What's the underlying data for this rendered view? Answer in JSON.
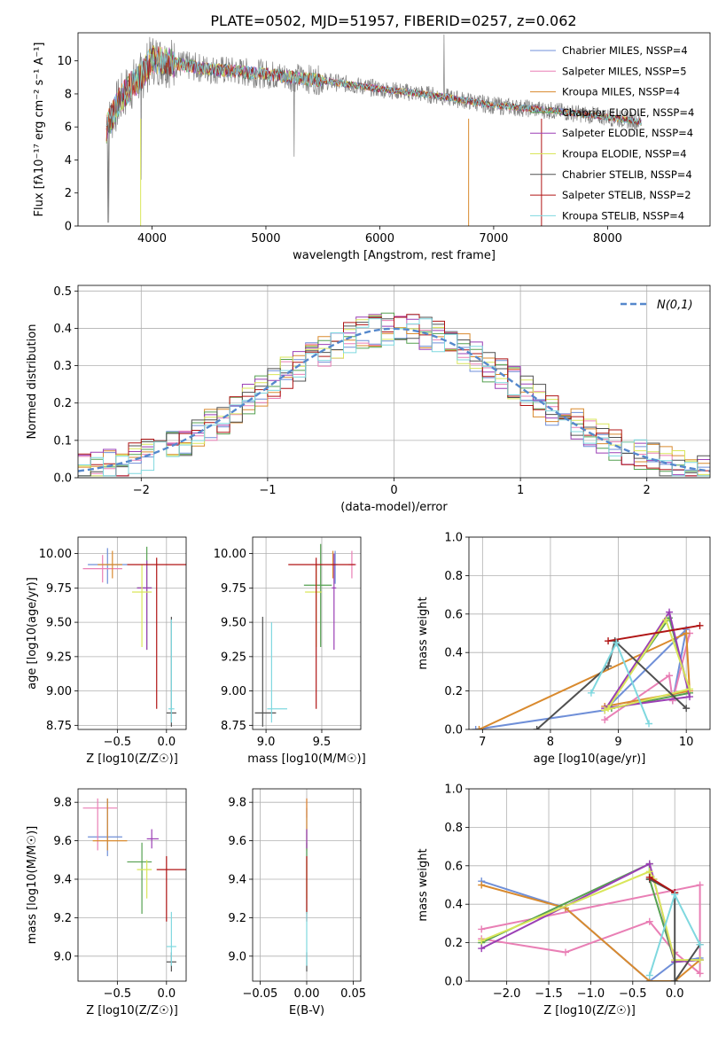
{
  "title": "PLATE=0502, MJD=51957, FIBERID=0257, z=0.062",
  "colors": [
    "#6f8fd8",
    "#e97fb5",
    "#d98a2e",
    "#55a050",
    "#9b3fb5",
    "#d9e65a",
    "#505050",
    "#b01515",
    "#7fd8df"
  ],
  "chart_data": [
    {
      "id": "spectrum",
      "type": "line",
      "xlabel": "wavelength [Angstrom, rest frame]",
      "ylabel": "Flux [fλ10⁻¹⁷ erg cm⁻² s⁻¹ A⁻¹]",
      "xlim": [
        3350,
        8900
      ],
      "ylim": [
        0,
        11.7
      ],
      "xticks": [
        4000,
        5000,
        6000,
        7000,
        8000
      ],
      "yticks": [
        0,
        2,
        4,
        6,
        8,
        10
      ],
      "grid": false,
      "legend_position": "top-right",
      "legend": [
        "Chabrier MILES, NSSP=4",
        "Salpeter MILES, NSSP=5",
        "Kroupa MILES, NSSP=4",
        "Chabrier ELODIE, NSSP=4",
        "Salpeter ELODIE, NSSP=4",
        "Kroupa ELODIE, NSSP=4",
        "Chabrier STELIB, NSSP=4",
        "Salpeter STELIB, NSSP=2",
        "Kroupa STELIB, NSSP=4"
      ],
      "continuum": {
        "x": [
          3600,
          3700,
          3800,
          3900,
          4000,
          4100,
          4300,
          4500,
          5000,
          5500,
          6000,
          6500,
          7000,
          7500,
          8000,
          8300
        ],
        "y": [
          5.9,
          7.4,
          8.4,
          9.0,
          10.1,
          10.0,
          9.7,
          9.5,
          9.2,
          8.8,
          8.3,
          7.9,
          7.3,
          7.0,
          6.6,
          6.3
        ]
      }
    },
    {
      "id": "residuals",
      "type": "step",
      "xlabel": "(data-model)/error",
      "ylabel": "Normed distribution",
      "xlim": [
        -2.5,
        2.5
      ],
      "ylim": [
        0,
        0.515
      ],
      "xticks": [
        -2,
        -1,
        0,
        1,
        2
      ],
      "yticks": [
        0.0,
        0.1,
        0.2,
        0.3,
        0.4,
        0.5
      ],
      "grid": true,
      "legend_position": "top-right",
      "legend": [
        "N(0,1)"
      ],
      "gaussian": {
        "mean": 0,
        "sigma": 1
      }
    },
    {
      "id": "age-vs-Z",
      "type": "errorbar",
      "xlabel": "Z [log10(Z/Z☉)]",
      "ylabel": "age  [log10(age/yr)]",
      "xlim": [
        -0.9,
        0.2
      ],
      "ylim": [
        8.72,
        10.12
      ],
      "xticks": [
        -0.5,
        0.0
      ],
      "yticks": [
        8.75,
        9.0,
        9.25,
        9.5,
        9.75,
        10.0
      ],
      "grid": true,
      "points": [
        {
          "s": 0,
          "x": -0.6,
          "xe": [
            0.2,
            0.2
          ],
          "y": 9.92,
          "ye": [
            0.14,
            0.12
          ]
        },
        {
          "s": 1,
          "x": -0.65,
          "xe": [
            0.2,
            0.2
          ],
          "y": 9.89,
          "ye": [
            0.1,
            0.1
          ]
        },
        {
          "s": 2,
          "x": -0.55,
          "xe": [
            0.15,
            0.1
          ],
          "y": 9.92,
          "ye": [
            0.1,
            0.1
          ]
        },
        {
          "s": 3,
          "x": -0.2,
          "xe": [
            0.1,
            0.05
          ],
          "y": 9.75,
          "ye": [
            0.45,
            0.3
          ]
        },
        {
          "s": 4,
          "x": -0.2,
          "xe": [
            0.1,
            0.05
          ],
          "y": 9.75,
          "ye": [
            0.45,
            0.2
          ]
        },
        {
          "s": 5,
          "x": -0.25,
          "xe": [
            0.1,
            0.1
          ],
          "y": 9.72,
          "ye": [
            0.4,
            0.2
          ]
        },
        {
          "s": 6,
          "x": 0.05,
          "xe": [
            0.05,
            0.05
          ],
          "y": 8.84,
          "ye": [
            0.1,
            0.7
          ]
        },
        {
          "s": 7,
          "x": -0.1,
          "xe": [
            0.3,
            0.3
          ],
          "y": 9.92,
          "ye": [
            1.05,
            0.05
          ]
        },
        {
          "s": 8,
          "x": 0.05,
          "xe": [
            0.03,
            0.03
          ],
          "y": 8.87,
          "ye": [
            0.1,
            0.65
          ]
        }
      ]
    },
    {
      "id": "age-vs-mass",
      "type": "errorbar",
      "xlabel": "mass [log10(M/M☉)]",
      "ylabel": "",
      "xlim": [
        8.88,
        9.85
      ],
      "ylim": [
        8.72,
        10.12
      ],
      "xticks": [
        9.0,
        9.5
      ],
      "yticks": [
        8.75,
        9.0,
        9.25,
        9.5,
        9.75,
        10.0
      ],
      "grid": true,
      "points": [
        {
          "s": 0,
          "x": 9.62,
          "xe": [
            0.02,
            0.02
          ],
          "y": 9.92,
          "ye": [
            0.14,
            0.1
          ]
        },
        {
          "s": 1,
          "x": 9.77,
          "xe": [
            0.03,
            0.04
          ],
          "y": 9.92,
          "ye": [
            0.1,
            0.1
          ]
        },
        {
          "s": 2,
          "x": 9.6,
          "xe": [
            0.02,
            0.02
          ],
          "y": 9.92,
          "ye": [
            0.1,
            0.1
          ]
        },
        {
          "s": 3,
          "x": 9.49,
          "xe": [
            0.15,
            0.1
          ],
          "y": 9.77,
          "ye": [
            0.45,
            0.3
          ]
        },
        {
          "s": 4,
          "x": 9.61,
          "xe": [
            0.02,
            0.02
          ],
          "y": 9.75,
          "ye": [
            0.45,
            0.25
          ]
        },
        {
          "s": 5,
          "x": 9.45,
          "xe": [
            0.1,
            0.05
          ],
          "y": 9.72,
          "ye": [
            0.4,
            0.2
          ]
        },
        {
          "s": 6,
          "x": 8.97,
          "xe": [
            0.07,
            0.12
          ],
          "y": 8.84,
          "ye": [
            0.1,
            0.7
          ]
        },
        {
          "s": 7,
          "x": 9.45,
          "xe": [
            0.25,
            0.35
          ],
          "y": 9.92,
          "ye": [
            1.05,
            0.05
          ]
        },
        {
          "s": 8,
          "x": 9.05,
          "xe": [
            0.04,
            0.14
          ],
          "y": 8.87,
          "ye": [
            0.1,
            0.63
          ]
        }
      ]
    },
    {
      "id": "massweight-vs-age",
      "type": "line",
      "xlabel": "age  [log10(age/yr)]",
      "ylabel": "mass weight",
      "xlim": [
        6.8,
        10.35
      ],
      "ylim": [
        0,
        1.0
      ],
      "xticks": [
        7,
        8,
        9,
        10
      ],
      "yticks": [
        0.0,
        0.2,
        0.4,
        0.6,
        0.8,
        1.0
      ],
      "grid": true,
      "series": [
        {
          "s": 0,
          "x": [
            6.9,
            8.8,
            10.0,
            9.8
          ],
          "y": [
            0.0,
            0.1,
            0.52,
            0.15
          ]
        },
        {
          "s": 1,
          "x": [
            8.8,
            9.75,
            9.8,
            10.05
          ],
          "y": [
            0.05,
            0.28,
            0.15,
            0.5
          ]
        },
        {
          "s": 2,
          "x": [
            6.95,
            10.0,
            10.05,
            8.8
          ],
          "y": [
            0.0,
            0.5,
            0.2,
            0.12
          ]
        },
        {
          "s": 3,
          "x": [
            8.8,
            9.75,
            10.05,
            8.9
          ],
          "y": [
            0.1,
            0.58,
            0.19,
            0.11
          ]
        },
        {
          "s": 4,
          "x": [
            8.8,
            9.75,
            10.05,
            8.8
          ],
          "y": [
            0.1,
            0.61,
            0.17,
            0.11
          ]
        },
        {
          "s": 5,
          "x": [
            8.85,
            9.7,
            10.05,
            8.8
          ],
          "y": [
            0.11,
            0.57,
            0.21,
            0.1
          ]
        },
        {
          "s": 6,
          "x": [
            7.8,
            8.85,
            8.95,
            10.0
          ],
          "y": [
            0.0,
            0.33,
            0.46,
            0.11
          ]
        },
        {
          "s": 7,
          "x": [
            8.85,
            10.2
          ],
          "y": [
            0.46,
            0.54
          ]
        },
        {
          "s": 8,
          "x": [
            8.6,
            8.97,
            9.45
          ],
          "y": [
            0.19,
            0.45,
            0.03
          ]
        }
      ]
    },
    {
      "id": "mass-vs-Z",
      "type": "errorbar",
      "xlabel": "Z [log10(Z/Z☉)]",
      "ylabel": "mass [log10(M/M☉)]",
      "xlim": [
        -0.9,
        0.2
      ],
      "ylim": [
        8.87,
        9.87
      ],
      "xticks": [
        -0.5,
        0.0
      ],
      "yticks": [
        9.0,
        9.2,
        9.4,
        9.6,
        9.8
      ],
      "grid": true,
      "points": [
        {
          "s": 0,
          "x": -0.6,
          "xe": [
            0.2,
            0.15
          ],
          "y": 9.62,
          "ye": [
            0.1,
            0.2
          ]
        },
        {
          "s": 1,
          "x": -0.7,
          "xe": [
            0.15,
            0.2
          ],
          "y": 9.77,
          "ye": [
            0.22,
            0.05
          ]
        },
        {
          "s": 2,
          "x": -0.6,
          "xe": [
            0.15,
            0.2
          ],
          "y": 9.6,
          "ye": [
            0.05,
            0.22
          ]
        },
        {
          "s": 3,
          "x": -0.25,
          "xe": [
            0.15,
            0.1
          ],
          "y": 9.49,
          "ye": [
            0.27,
            0.1
          ]
        },
        {
          "s": 4,
          "x": -0.15,
          "xe": [
            0.05,
            0.07
          ],
          "y": 9.61,
          "ye": [
            0.05,
            0.05
          ]
        },
        {
          "s": 5,
          "x": -0.2,
          "xe": [
            0.1,
            0.05
          ],
          "y": 9.45,
          "ye": [
            0.15,
            0.05
          ]
        },
        {
          "s": 6,
          "x": 0.05,
          "xe": [
            0.05,
            0.05
          ],
          "y": 8.97,
          "ye": [
            0.05,
            0.05
          ]
        },
        {
          "s": 7,
          "x": 0.0,
          "xe": [
            0.1,
            0.2
          ],
          "y": 9.45,
          "ye": [
            0.27,
            0.07
          ]
        },
        {
          "s": 8,
          "x": 0.05,
          "xe": [
            0.05,
            0.05
          ],
          "y": 9.05,
          "ye": [
            0.1,
            0.18
          ]
        }
      ]
    },
    {
      "id": "mass-vs-EBV",
      "type": "errorbar",
      "xlabel": "E(B-V)",
      "ylabel": "",
      "xlim": [
        -0.058,
        0.058
      ],
      "ylim": [
        8.87,
        9.87
      ],
      "xticks": [
        -0.05,
        0.0,
        0.05
      ],
      "yticks": [
        9.0,
        9.2,
        9.4,
        9.6,
        9.8
      ],
      "grid": true,
      "points": [
        {
          "s": 0,
          "x": 0,
          "xe": [
            0,
            0
          ],
          "y": 9.62,
          "ye": [
            0.1,
            0.15
          ]
        },
        {
          "s": 1,
          "x": 0,
          "xe": [
            0,
            0
          ],
          "y": 9.77,
          "ye": [
            0.05,
            0.05
          ]
        },
        {
          "s": 2,
          "x": 0,
          "xe": [
            0,
            0
          ],
          "y": 9.6,
          "ye": [
            0.05,
            0.22
          ]
        },
        {
          "s": 3,
          "x": 0,
          "xe": [
            0,
            0
          ],
          "y": 9.49,
          "ye": [
            0.27,
            0.1
          ]
        },
        {
          "s": 4,
          "x": 0,
          "xe": [
            0,
            0
          ],
          "y": 9.61,
          "ye": [
            0.05,
            0.05
          ]
        },
        {
          "s": 5,
          "x": 0,
          "xe": [
            0,
            0
          ],
          "y": 9.45,
          "ye": [
            0.15,
            0.05
          ]
        },
        {
          "s": 6,
          "x": 0,
          "xe": [
            0,
            0
          ],
          "y": 8.97,
          "ye": [
            0.05,
            0.05
          ]
        },
        {
          "s": 7,
          "x": 0,
          "xe": [
            0,
            0
          ],
          "y": 9.45,
          "ye": [
            0.27,
            0.07
          ]
        },
        {
          "s": 8,
          "x": 0,
          "xe": [
            0,
            0
          ],
          "y": 9.05,
          "ye": [
            0.1,
            0.18
          ]
        }
      ]
    },
    {
      "id": "massweight-vs-Z",
      "type": "line",
      "xlabel": "Z [log10(Z/Z☉)]",
      "ylabel": "mass weight",
      "xlim": [
        -2.45,
        0.42
      ],
      "ylim": [
        0,
        1.0
      ],
      "xticks": [
        -2.0,
        -1.5,
        -1.0,
        -0.5,
        0.0
      ],
      "yticks": [
        0.0,
        0.2,
        0.4,
        0.6,
        0.8,
        1.0
      ],
      "grid": true,
      "series": [
        {
          "s": 0,
          "x": [
            -2.3,
            -1.3,
            -0.3,
            0.0,
            0.3
          ],
          "y": [
            0.52,
            0.38,
            0.0,
            0.1,
            0.12
          ]
        },
        {
          "s": 1,
          "x": [
            -2.3,
            -1.3,
            -0.3,
            0.0,
            0.3,
            0.3,
            -2.3
          ],
          "y": [
            0.22,
            0.15,
            0.31,
            0.15,
            0.04,
            0.5,
            0.27
          ]
        },
        {
          "s": 2,
          "x": [
            -2.3,
            -1.3,
            -0.3,
            0.0,
            0.3
          ],
          "y": [
            0.5,
            0.38,
            0.0,
            0.0,
            0.11
          ]
        },
        {
          "s": 3,
          "x": [
            -2.3,
            -0.3,
            -0.3,
            0.0,
            0.3
          ],
          "y": [
            0.2,
            0.61,
            0.53,
            0.1,
            0.11
          ]
        },
        {
          "s": 4,
          "x": [
            -2.3,
            -0.3,
            -0.25,
            0.0,
            0.3
          ],
          "y": [
            0.17,
            0.61,
            0.53,
            0.1,
            0.11
          ]
        },
        {
          "s": 5,
          "x": [
            -2.3,
            -0.3,
            -0.25,
            0.0,
            0.3
          ],
          "y": [
            0.21,
            0.57,
            0.53,
            0.11,
            0.11
          ]
        },
        {
          "s": 6,
          "x": [
            -0.3,
            0.0,
            0.0,
            0.3
          ],
          "y": [
            0.53,
            0.46,
            0.0,
            0.19
          ]
        },
        {
          "s": 7,
          "x": [
            -0.3,
            0.0
          ],
          "y": [
            0.54,
            0.46
          ]
        },
        {
          "s": 8,
          "x": [
            -0.3,
            0.0,
            0.3
          ],
          "y": [
            0.03,
            0.45,
            0.19
          ]
        }
      ]
    }
  ]
}
